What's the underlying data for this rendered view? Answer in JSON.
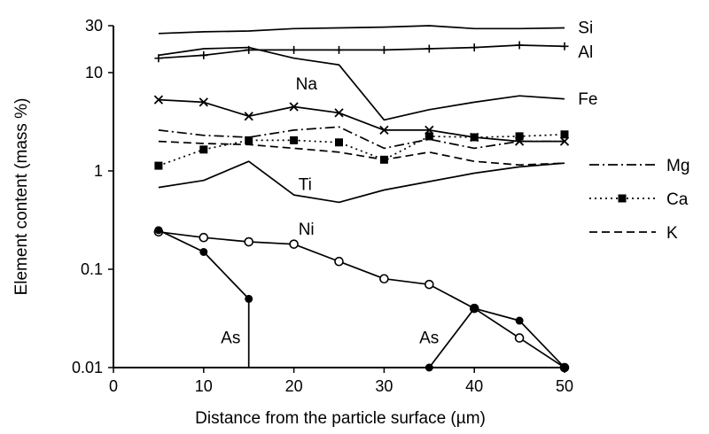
{
  "chart_data": {
    "type": "line",
    "title": "",
    "xlabel": "Distance from the particle surface (µm)",
    "ylabel": "Element content (mass %)",
    "xlim": [
      0,
      50
    ],
    "ylim": [
      0.01,
      30
    ],
    "yscale": "log",
    "grid": false,
    "xticks": [
      0,
      10,
      20,
      30,
      40,
      50
    ],
    "yticks": [
      {
        "value": 0.01,
        "label": "0.01"
      },
      {
        "value": 0.1,
        "label": "0.1"
      },
      {
        "value": 1,
        "label": "1"
      },
      {
        "value": 10,
        "label": "10"
      },
      {
        "value": 30,
        "label": "30"
      }
    ],
    "series": [
      {
        "name": "Si",
        "dash": "solid",
        "marker": "none",
        "points": [
          [
            5,
            25
          ],
          [
            10,
            26
          ],
          [
            15,
            26.5
          ],
          [
            20,
            28
          ],
          [
            25,
            28.5
          ],
          [
            30,
            29
          ],
          [
            35,
            30
          ],
          [
            40,
            28
          ],
          [
            45,
            28
          ],
          [
            50,
            28.5
          ]
        ]
      },
      {
        "name": "Al",
        "dash": "solid",
        "marker": "plus",
        "points": [
          [
            5,
            14
          ],
          [
            10,
            15
          ],
          [
            15,
            17
          ],
          [
            20,
            17
          ],
          [
            25,
            17
          ],
          [
            30,
            17
          ],
          [
            35,
            17.5
          ],
          [
            40,
            18
          ],
          [
            45,
            19
          ],
          [
            50,
            18.5
          ]
        ]
      },
      {
        "name": "Fe",
        "dash": "solid",
        "marker": "none",
        "points": [
          [
            5,
            15
          ],
          [
            10,
            17.5
          ],
          [
            15,
            18
          ],
          [
            20,
            14
          ],
          [
            25,
            12
          ],
          [
            30,
            3.3
          ],
          [
            35,
            4.2
          ],
          [
            40,
            5
          ],
          [
            45,
            5.8
          ],
          [
            50,
            5.4
          ]
        ]
      },
      {
        "name": "Na",
        "dash": "solid",
        "marker": "x",
        "points": [
          [
            5,
            5.3
          ],
          [
            10,
            5
          ],
          [
            15,
            3.6
          ],
          [
            20,
            4.5
          ],
          [
            25,
            3.9
          ],
          [
            30,
            2.6
          ],
          [
            35,
            2.6
          ],
          [
            40,
            2.2
          ],
          [
            45,
            2
          ],
          [
            50,
            2
          ]
        ]
      },
      {
        "name": "Mg",
        "dash": "dashdot",
        "marker": "none",
        "points": [
          [
            5,
            2.6
          ],
          [
            10,
            2.3
          ],
          [
            15,
            2.2
          ],
          [
            20,
            2.6
          ],
          [
            25,
            2.8
          ],
          [
            30,
            1.7
          ],
          [
            35,
            2.1
          ],
          [
            40,
            1.7
          ],
          [
            45,
            2
          ],
          [
            50,
            2
          ]
        ]
      },
      {
        "name": "Ca",
        "dash": "dotted",
        "marker": "square",
        "points": [
          [
            5,
            1.13
          ],
          [
            10,
            1.65
          ],
          [
            15,
            2.05
          ],
          [
            20,
            2.05
          ],
          [
            25,
            1.95
          ],
          [
            30,
            1.3
          ],
          [
            35,
            2.25
          ],
          [
            40,
            2.2
          ],
          [
            45,
            2.25
          ],
          [
            50,
            2.35
          ]
        ]
      },
      {
        "name": "K",
        "dash": "dashed",
        "marker": "none",
        "points": [
          [
            5,
            2
          ],
          [
            10,
            1.9
          ],
          [
            15,
            1.85
          ],
          [
            20,
            1.7
          ],
          [
            25,
            1.55
          ],
          [
            30,
            1.3
          ],
          [
            35,
            1.55
          ],
          [
            40,
            1.25
          ],
          [
            45,
            1.15
          ],
          [
            50,
            1.2
          ]
        ]
      },
      {
        "name": "Ti",
        "dash": "solid",
        "marker": "none",
        "points": [
          [
            5,
            0.68
          ],
          [
            10,
            0.8
          ],
          [
            15,
            1.25
          ],
          [
            20,
            0.57
          ],
          [
            25,
            0.48
          ],
          [
            30,
            0.64
          ],
          [
            35,
            0.78
          ],
          [
            40,
            0.95
          ],
          [
            45,
            1.1
          ],
          [
            50,
            1.2
          ]
        ]
      },
      {
        "name": "Ni",
        "dash": "solid",
        "marker": "open-circle",
        "points": [
          [
            5,
            0.24
          ],
          [
            10,
            0.21
          ],
          [
            15,
            0.19
          ],
          [
            20,
            0.18
          ],
          [
            25,
            0.12
          ],
          [
            30,
            0.08
          ],
          [
            35,
            0.07
          ],
          [
            40,
            0.04
          ],
          [
            45,
            0.02
          ],
          [
            50,
            0.01
          ]
        ]
      },
      {
        "name": "As",
        "dash": "solid",
        "marker": "filled-circle",
        "points": [
          [
            5,
            0.25
          ],
          [
            10,
            0.15
          ],
          [
            15,
            0.05
          ]
        ]
      },
      {
        "name": "As",
        "dash": "solid",
        "marker": "filled-circle",
        "points": [
          [
            35,
            0.01
          ],
          [
            40,
            0.04
          ],
          [
            45,
            0.03
          ],
          [
            50,
            0.01
          ]
        ]
      }
    ],
    "drop_lines": [
      {
        "x": 15,
        "from": 0.05,
        "to": 0.01
      }
    ],
    "inline_labels": [
      {
        "text": "Si",
        "x": 51.5,
        "y": 29
      },
      {
        "text": "Al",
        "x": 51.5,
        "y": 16.5
      },
      {
        "text": "Fe",
        "x": 51.5,
        "y": 5.5
      },
      {
        "text": "Na",
        "x": 20.2,
        "y": 7.8
      },
      {
        "text": "Ti",
        "x": 20.5,
        "y": 0.74
      },
      {
        "text": "Ni",
        "x": 20.5,
        "y": 0.26
      },
      {
        "text": "As",
        "x": 11.9,
        "y": 0.0205
      },
      {
        "text": "As",
        "x": 33.9,
        "y": 0.0205
      }
    ],
    "legend": {
      "position": "right",
      "items": [
        {
          "label": "Mg",
          "dash": "dashdot",
          "marker": "none"
        },
        {
          "label": "Ca",
          "dash": "dotted",
          "marker": "square"
        },
        {
          "label": "K",
          "dash": "dashed",
          "marker": "none"
        }
      ]
    }
  }
}
